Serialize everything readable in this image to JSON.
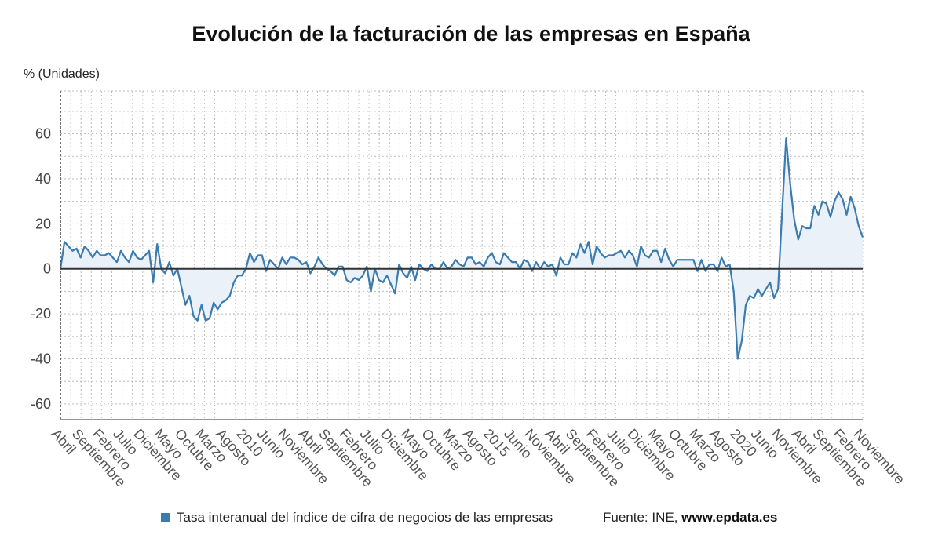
{
  "colors": {
    "series": "#3a7bb0",
    "fill": "#eaf1f8",
    "zero_line": "#333333",
    "grid": "#bbbbbb"
  },
  "source": {
    "prefix": "Fuente: INE, ",
    "site": "www.epdata.es"
  },
  "chart_data": {
    "type": "line",
    "title": "Evolución de la facturación de las empresas en España",
    "ylabel": "% (Unidades)",
    "xlabel": "",
    "ylim": [
      -67,
      79
    ],
    "y_ticks": [
      60,
      40,
      20,
      0,
      -20,
      -40,
      -60
    ],
    "y_tick_labels": [
      "60",
      "40",
      "20",
      "0",
      "-20",
      "-40",
      "-60"
    ],
    "grid": true,
    "legend_position": "bottom",
    "x_start": "2007-04",
    "x_end": "2022-11",
    "x_tick_labels": [
      "Abril",
      "Septiembre",
      "Febrero",
      "Julio",
      "Diciembre",
      "Mayo",
      "Octubre",
      "Marzo",
      "Agosto",
      "2010",
      "Junio",
      "Noviembre",
      "Abril",
      "Septiembre",
      "Febrero",
      "Julio",
      "Diciembre",
      "Mayo",
      "Octubre",
      "Marzo",
      "Agosto",
      "2015",
      "Junio",
      "Noviembre",
      "Abril",
      "Septiembre",
      "Febrero",
      "Julio",
      "Diciembre",
      "Mayo",
      "Octubre",
      "Marzo",
      "Agosto",
      "2020",
      "Junio",
      "Noviembre",
      "Abril",
      "Septiembre",
      "Febrero",
      "Noviembre"
    ],
    "series": [
      {
        "name": "Tasa interanual del índice de cifra de negocios de las empresas",
        "values": [
          0,
          12,
          10,
          8,
          9,
          5,
          10,
          8,
          5,
          8,
          6,
          6,
          7,
          5,
          3,
          8,
          5,
          3,
          8,
          5,
          4,
          6,
          8,
          -6,
          11,
          0,
          -2,
          3,
          -3,
          0,
          -8,
          -16,
          -12,
          -21,
          -23,
          -16,
          -23,
          -22,
          -15,
          -18,
          -15,
          -14,
          -12,
          -6,
          -3,
          -3,
          0,
          7,
          3,
          6,
          6,
          -1,
          4,
          2,
          0,
          5,
          2,
          5,
          5,
          4,
          2,
          3,
          -2,
          1,
          5,
          2,
          0,
          -1,
          -3,
          1,
          1,
          -5,
          -6,
          -4,
          -5,
          -3,
          1,
          -10,
          0,
          -5,
          -6,
          -3,
          -7,
          -11,
          2,
          -2,
          -4,
          1,
          -5,
          2,
          0,
          -1,
          2,
          0,
          0,
          3,
          0,
          1,
          4,
          2,
          1,
          5,
          5,
          2,
          3,
          1,
          5,
          7,
          3,
          2,
          7,
          5,
          3,
          3,
          0,
          4,
          3,
          -1,
          3,
          0,
          3,
          1,
          2,
          -3,
          5,
          2,
          2,
          7,
          5,
          11,
          7,
          12,
          2,
          10,
          7,
          5,
          6,
          6,
          7,
          8,
          5,
          8,
          6,
          1,
          10,
          6,
          5,
          8,
          8,
          3,
          9,
          4,
          1,
          4,
          4,
          4,
          4,
          4,
          -1,
          4,
          -1,
          2,
          2,
          -1,
          5,
          1,
          2,
          -10,
          -40,
          -32,
          -16,
          -12,
          -13,
          -9,
          -12,
          -9,
          -6,
          -13,
          -9,
          25,
          58,
          38,
          22,
          13,
          19,
          18,
          18,
          28,
          24,
          30,
          29,
          23,
          30,
          34,
          31,
          24,
          32,
          27,
          19,
          14
        ]
      }
    ]
  }
}
